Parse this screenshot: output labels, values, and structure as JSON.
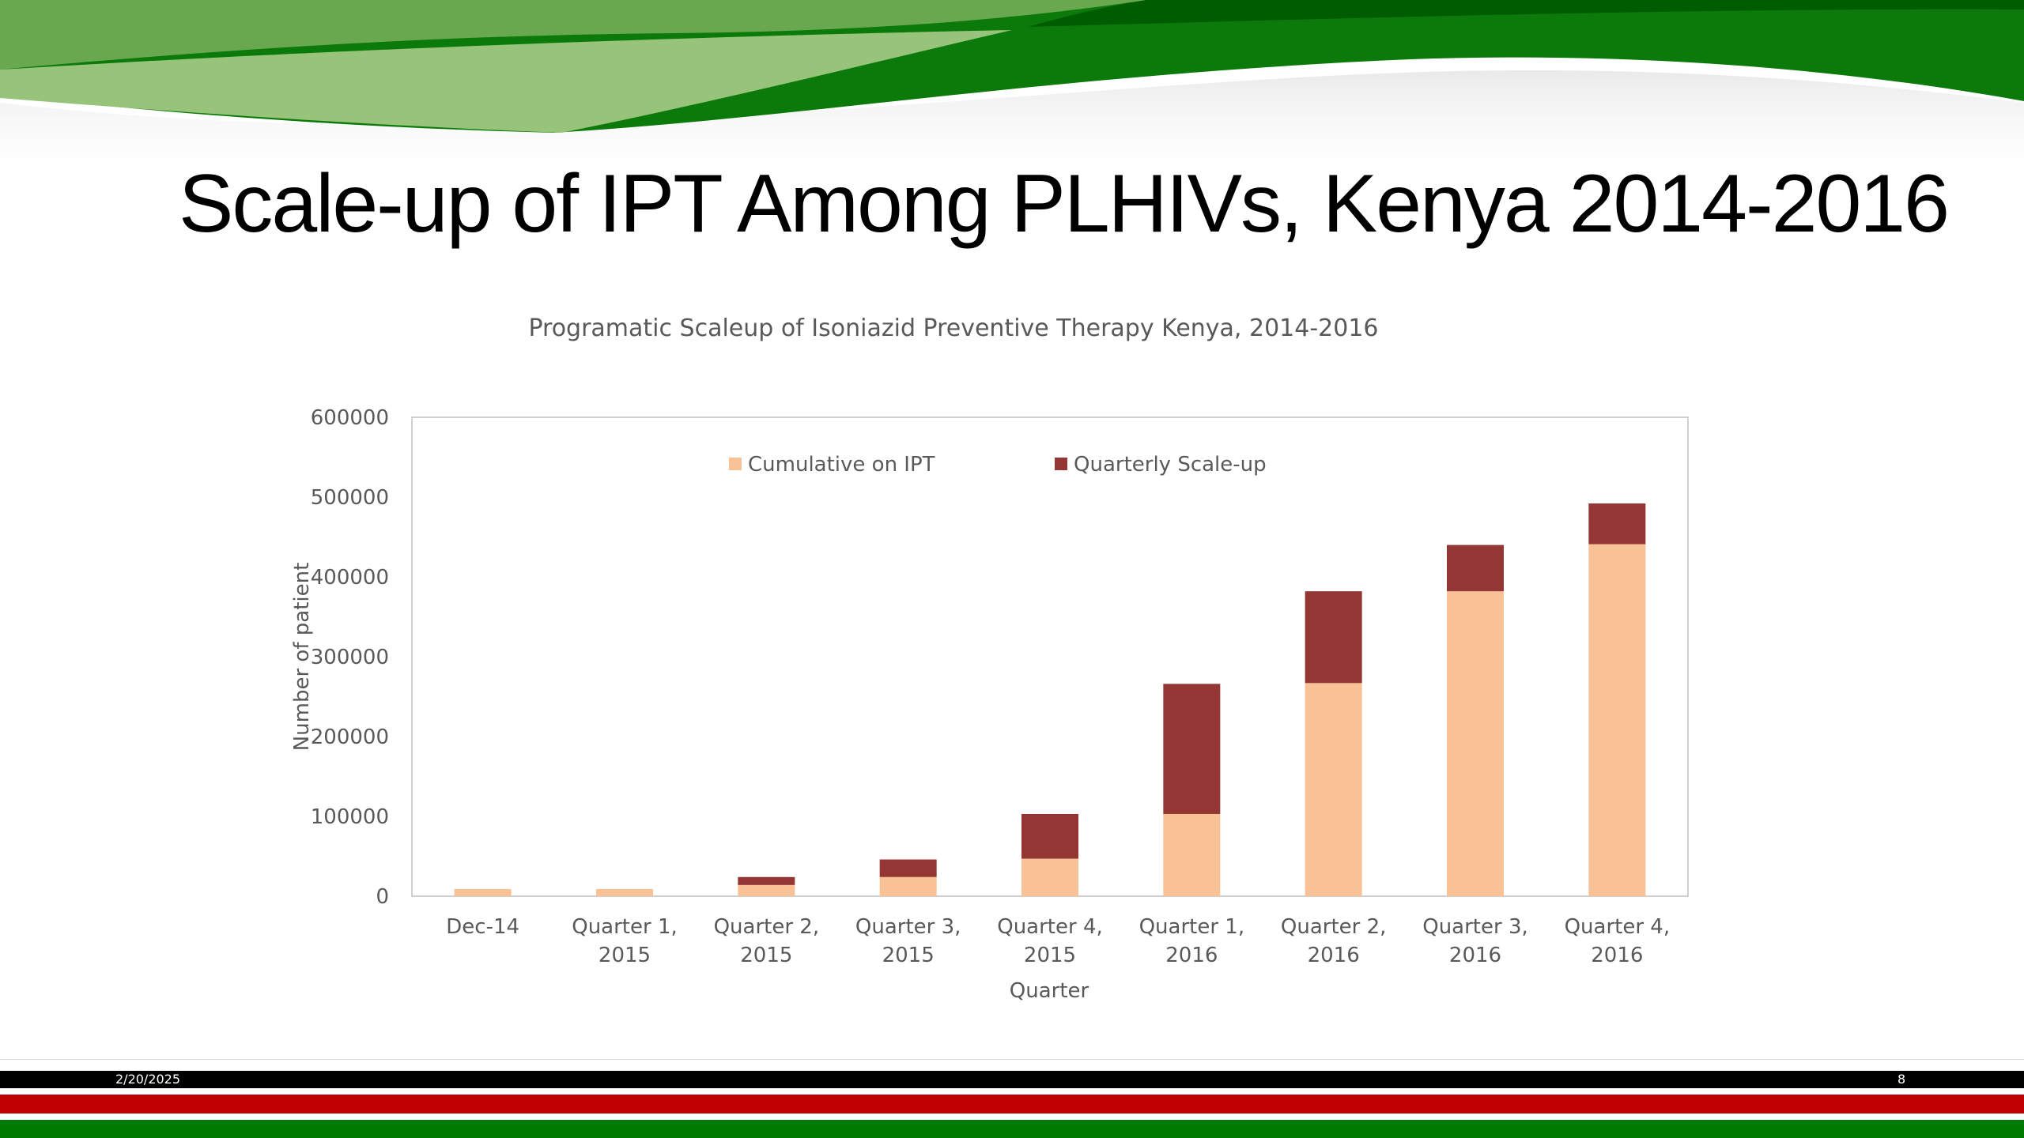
{
  "slide": {
    "title": "Scale-up of IPT Among PLHIVs, Kenya 2014-2016",
    "date": "2/20/2025",
    "page_number": "8"
  },
  "colors": {
    "green_dark": "#0b7a0b",
    "green_light": "#8fc46a",
    "kenya_black": "#000000",
    "kenya_red": "#c00000",
    "kenya_green": "#007a00",
    "cumulative": "#f8c196",
    "quarterly": "#943634",
    "axis_text": "#595959",
    "plot_border": "#d0d0d0"
  },
  "chart_data": {
    "type": "bar",
    "stacked": true,
    "title": "Programatic Scaleup of Isoniazid Preventive Therapy Kenya, 2014-2016",
    "xlabel": "Quarter",
    "ylabel": "Number of patient",
    "ylim": [
      0,
      600000
    ],
    "yticks": [
      "0",
      "100000",
      "200000",
      "300000",
      "400000",
      "500000",
      "600000"
    ],
    "grid": false,
    "legend_position": "top",
    "categories": [
      [
        "Dec-14"
      ],
      [
        "Quarter 1,",
        "2015"
      ],
      [
        "Quarter 2,",
        "2015"
      ],
      [
        "Quarter 3,",
        "2015"
      ],
      [
        "Quarter 4,",
        "2015"
      ],
      [
        "Quarter 1,",
        "2016"
      ],
      [
        "Quarter 2,",
        "2016"
      ],
      [
        "Quarter 3,",
        "2016"
      ],
      [
        "Quarter 4,",
        "2016"
      ]
    ],
    "series": [
      {
        "name": "Cumulative on IPT",
        "color": "#f8c196",
        "values": [
          9000,
          9000,
          14000,
          24000,
          47000,
          103000,
          267000,
          382000,
          441000
        ]
      },
      {
        "name": "Quarterly Scale-up",
        "color": "#943634",
        "values": [
          0,
          0,
          10000,
          22000,
          56000,
          163000,
          115000,
          58000,
          51000
        ]
      }
    ]
  }
}
